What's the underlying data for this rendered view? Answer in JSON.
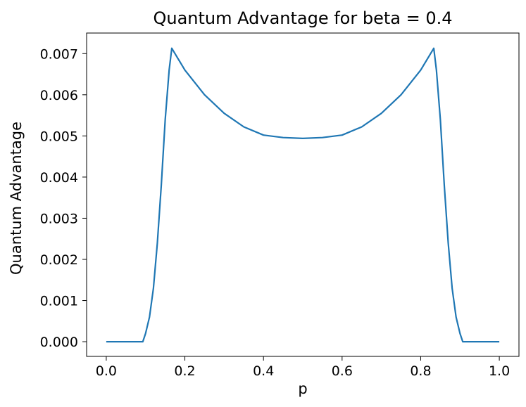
{
  "chart_data": {
    "type": "line",
    "title": "Quantum Advantage for beta = 0.4",
    "xlabel": "p",
    "ylabel": "Quantum Advantage",
    "xlim": [
      -0.05,
      1.05
    ],
    "ylim": [
      -0.000357,
      0.0075
    ],
    "xticks": [
      0.0,
      0.2,
      0.4,
      0.6,
      0.8,
      1.0
    ],
    "xtick_labels": [
      "0.0",
      "0.2",
      "0.4",
      "0.6",
      "0.8",
      "1.0"
    ],
    "yticks": [
      0.0,
      0.001,
      0.002,
      0.003,
      0.004,
      0.005,
      0.006,
      0.007
    ],
    "ytick_labels": [
      "0.000",
      "0.001",
      "0.002",
      "0.003",
      "0.004",
      "0.005",
      "0.006",
      "0.007"
    ],
    "grid": false,
    "legend": "none",
    "series": [
      {
        "color": "#1f77b4",
        "x": [
          0.0,
          0.05,
          0.093,
          0.1,
          0.11,
          0.12,
          0.13,
          0.14,
          0.15,
          0.16,
          0.1667,
          0.2,
          0.25,
          0.3,
          0.35,
          0.4,
          0.45,
          0.5,
          0.55,
          0.6,
          0.65,
          0.7,
          0.75,
          0.8,
          0.8333,
          0.84,
          0.85,
          0.86,
          0.87,
          0.88,
          0.89,
          0.9,
          0.907,
          0.95,
          1.0
        ],
        "y": [
          0.0,
          0.0,
          0.0,
          0.0002,
          0.0006,
          0.0013,
          0.0024,
          0.0038,
          0.0054,
          0.0066,
          0.00713,
          0.0066,
          0.006,
          0.00555,
          0.00522,
          0.00502,
          0.00496,
          0.00494,
          0.00496,
          0.00502,
          0.00522,
          0.00555,
          0.006,
          0.0066,
          0.00713,
          0.0066,
          0.0054,
          0.0038,
          0.0024,
          0.0013,
          0.0006,
          0.0002,
          0.0,
          0.0,
          0.0
        ]
      }
    ]
  }
}
